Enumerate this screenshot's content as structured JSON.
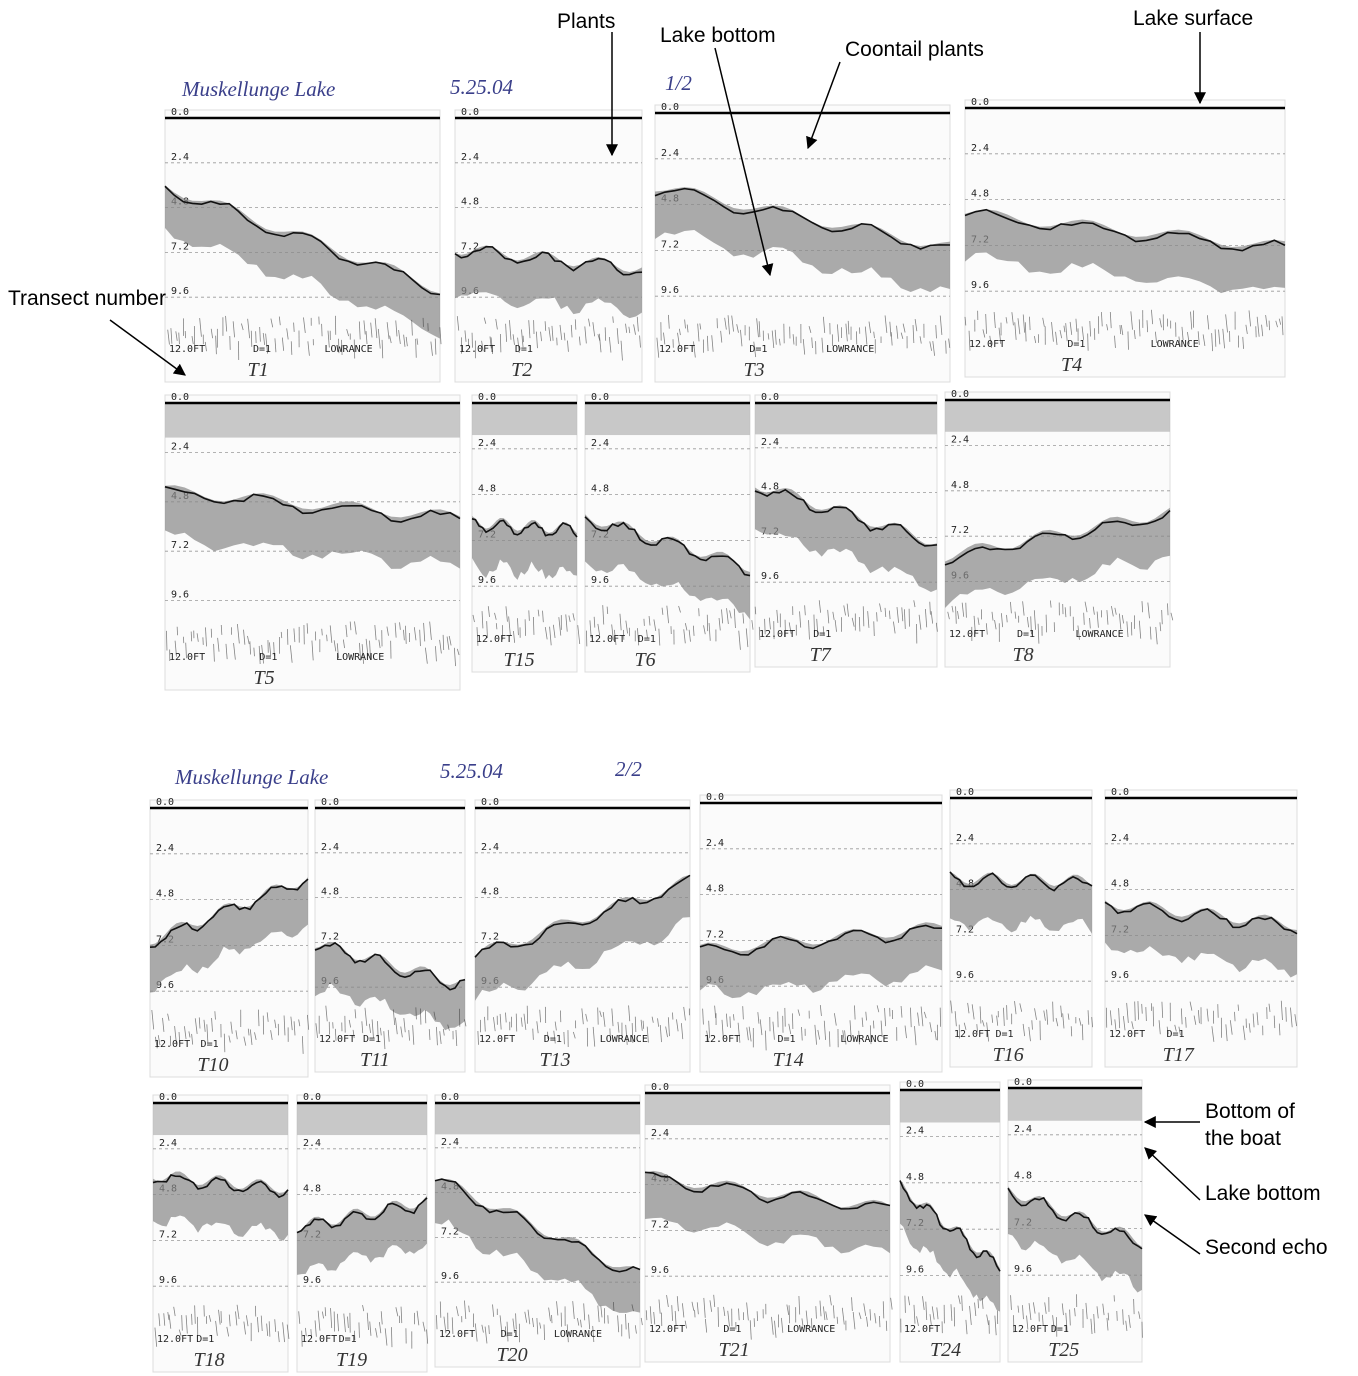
{
  "annotations": [
    "Plants",
    "Lake bottom",
    "Coontail plants",
    "Lake surface",
    "Transect number",
    "Bottom of the boat",
    "Lake bottom",
    "Second echo"
  ],
  "sheets": [
    {
      "lake": "Muskellunge Lake",
      "date": "5.25.04",
      "page": "1/2",
      "transects": [
        "T1",
        "T2",
        "T3",
        "T4",
        "T5",
        "T15",
        "T6",
        "T7",
        "T8"
      ]
    },
    {
      "lake": "Muskellunge Lake",
      "date": "5.25.04",
      "page": "2/2",
      "transects": [
        "T10",
        "T11",
        "T13",
        "T14",
        "T16",
        "T17",
        "T18",
        "T19",
        "T20",
        "T21",
        "T24",
        "T25"
      ]
    }
  ],
  "recorder": {
    "depths": [
      "0.0",
      "2.4",
      "4.8",
      "7.2",
      "9.6"
    ],
    "range": "12.0FT",
    "setting": "D=1",
    "brand": "LOWRANCE"
  }
}
